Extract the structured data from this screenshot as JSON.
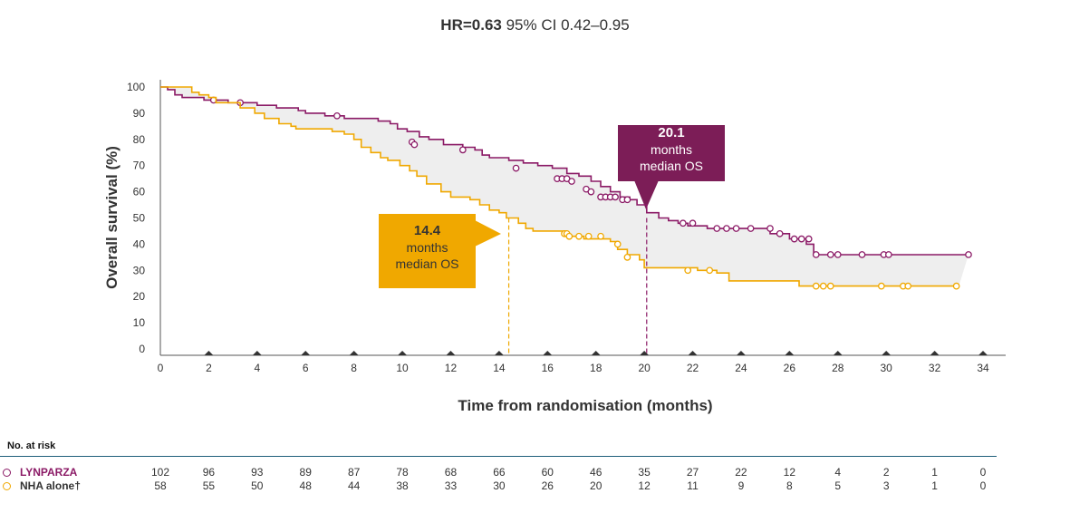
{
  "header": {
    "hr_bold": "HR=0.63",
    "hr_rest": " 95% CI 0.42–0.95"
  },
  "axes": {
    "ylabel": "Overall survival (%)",
    "xlabel": "Time from randomisation (months)"
  },
  "callouts": {
    "olaparib": {
      "value": "20.1",
      "line1": "months",
      "line2": "median OS"
    },
    "nha": {
      "value": "14.4",
      "line1": "months",
      "line2": "median OS"
    }
  },
  "risk_table": {
    "title": "No. at risk",
    "rows": [
      {
        "label": "LYNPARZA",
        "color": "#8b1a66",
        "values": [
          "102",
          "96",
          "93",
          "89",
          "87",
          "78",
          "68",
          "66",
          "60",
          "46",
          "35",
          "27",
          "22",
          "12",
          "4",
          "2",
          "1",
          "0"
        ]
      },
      {
        "label": "NHA alone†",
        "color": "#f0a800",
        "values": [
          "58",
          "55",
          "50",
          "48",
          "44",
          "38",
          "33",
          "30",
          "26",
          "20",
          "12",
          "11",
          "9",
          "8",
          "5",
          "3",
          "1",
          "0"
        ]
      }
    ]
  },
  "chart_data": {
    "type": "line",
    "subtype": "kaplan-meier step",
    "title": "HR=0.63 95% CI 0.42–0.95",
    "xlabel": "Time from randomisation (months)",
    "ylabel": "Overall survival (%)",
    "xlim": [
      0,
      34
    ],
    "ylim": [
      0,
      100
    ],
    "xticks": [
      0,
      2,
      4,
      6,
      8,
      10,
      12,
      14,
      16,
      18,
      20,
      22,
      24,
      26,
      28,
      30,
      32,
      34
    ],
    "yticks": [
      0,
      10,
      20,
      30,
      40,
      50,
      60,
      70,
      80,
      90,
      100
    ],
    "grid": false,
    "medians": [
      {
        "series": "LYNPARZA",
        "x": 20.1,
        "y": 50
      },
      {
        "series": "NHA alone†",
        "x": 14.4,
        "y": 50
      }
    ],
    "series": [
      {
        "name": "LYNPARZA",
        "color": "#8b1a66",
        "steps": [
          [
            0,
            100
          ],
          [
            0.3,
            99
          ],
          [
            0.6,
            97
          ],
          [
            0.9,
            96
          ],
          [
            1.8,
            95
          ],
          [
            2.8,
            94
          ],
          [
            4.0,
            93
          ],
          [
            4.8,
            92
          ],
          [
            5.7,
            91
          ],
          [
            6.0,
            90
          ],
          [
            6.8,
            89
          ],
          [
            7.6,
            88
          ],
          [
            8.4,
            88
          ],
          [
            9.0,
            87
          ],
          [
            9.5,
            86
          ],
          [
            9.8,
            84
          ],
          [
            10.2,
            83
          ],
          [
            10.7,
            81
          ],
          [
            11.1,
            80
          ],
          [
            11.7,
            78
          ],
          [
            12.5,
            77
          ],
          [
            13.0,
            76
          ],
          [
            13.3,
            74
          ],
          [
            13.6,
            73
          ],
          [
            14.4,
            72
          ],
          [
            15.0,
            71
          ],
          [
            15.6,
            70
          ],
          [
            16.2,
            69
          ],
          [
            16.8,
            67
          ],
          [
            17.3,
            66
          ],
          [
            17.8,
            64
          ],
          [
            18.2,
            62
          ],
          [
            18.6,
            60
          ],
          [
            19.0,
            58
          ],
          [
            19.4,
            57
          ],
          [
            19.7,
            55
          ],
          [
            20.1,
            52
          ],
          [
            20.6,
            50
          ],
          [
            21.0,
            49
          ],
          [
            21.4,
            48
          ],
          [
            21.8,
            47
          ],
          [
            22.6,
            46
          ],
          [
            25.2,
            44
          ],
          [
            26.0,
            42
          ],
          [
            26.7,
            40
          ],
          [
            27.0,
            36
          ],
          [
            33.4,
            36
          ]
        ],
        "censored": [
          [
            2.2,
            95
          ],
          [
            3.3,
            94
          ],
          [
            7.3,
            89
          ],
          [
            10.4,
            79
          ],
          [
            10.5,
            78
          ],
          [
            12.5,
            76
          ],
          [
            14.7,
            69
          ],
          [
            16.4,
            65
          ],
          [
            16.6,
            65
          ],
          [
            16.8,
            65
          ],
          [
            17.0,
            64
          ],
          [
            17.6,
            61
          ],
          [
            17.8,
            60
          ],
          [
            18.2,
            58
          ],
          [
            18.4,
            58
          ],
          [
            18.6,
            58
          ],
          [
            18.8,
            58
          ],
          [
            19.1,
            57
          ],
          [
            19.3,
            57
          ],
          [
            21.6,
            48
          ],
          [
            22.0,
            48
          ],
          [
            23.0,
            46
          ],
          [
            23.4,
            46
          ],
          [
            23.8,
            46
          ],
          [
            24.4,
            46
          ],
          [
            25.2,
            46
          ],
          [
            25.6,
            44
          ],
          [
            26.2,
            42
          ],
          [
            26.5,
            42
          ],
          [
            26.8,
            42
          ],
          [
            27.1,
            36
          ],
          [
            27.7,
            36
          ],
          [
            28.0,
            36
          ],
          [
            29.0,
            36
          ],
          [
            29.9,
            36
          ],
          [
            30.1,
            36
          ],
          [
            33.4,
            36
          ]
        ]
      },
      {
        "name": "NHA alone†",
        "color": "#f0a800",
        "steps": [
          [
            0,
            100
          ],
          [
            1.3,
            98
          ],
          [
            1.6,
            97
          ],
          [
            2.0,
            96
          ],
          [
            2.3,
            94
          ],
          [
            3.3,
            92
          ],
          [
            3.9,
            90
          ],
          [
            4.3,
            88
          ],
          [
            4.9,
            86
          ],
          [
            5.4,
            85
          ],
          [
            5.6,
            84
          ],
          [
            7.1,
            83
          ],
          [
            7.6,
            82
          ],
          [
            8.0,
            80
          ],
          [
            8.3,
            77
          ],
          [
            8.7,
            75
          ],
          [
            9.1,
            73
          ],
          [
            9.4,
            72
          ],
          [
            9.9,
            70
          ],
          [
            10.3,
            68
          ],
          [
            10.6,
            66
          ],
          [
            11.0,
            63
          ],
          [
            11.6,
            60
          ],
          [
            12.0,
            58
          ],
          [
            12.8,
            57
          ],
          [
            13.2,
            55
          ],
          [
            13.6,
            53
          ],
          [
            14.0,
            52
          ],
          [
            14.3,
            50
          ],
          [
            14.8,
            48
          ],
          [
            15.1,
            46
          ],
          [
            15.4,
            45
          ],
          [
            16.8,
            43
          ],
          [
            17.5,
            42
          ],
          [
            18.6,
            41
          ],
          [
            18.9,
            38
          ],
          [
            19.3,
            36
          ],
          [
            19.8,
            34
          ],
          [
            20.0,
            31
          ],
          [
            21.3,
            31
          ],
          [
            22.2,
            30
          ],
          [
            23.0,
            29
          ],
          [
            23.5,
            26
          ],
          [
            25.3,
            26
          ],
          [
            26.4,
            24
          ],
          [
            33.0,
            24
          ]
        ],
        "censored": [
          [
            16.7,
            44
          ],
          [
            16.8,
            44
          ],
          [
            16.9,
            43
          ],
          [
            17.3,
            43
          ],
          [
            17.7,
            43
          ],
          [
            18.2,
            43
          ],
          [
            18.9,
            40
          ],
          [
            19.3,
            35
          ],
          [
            21.8,
            30
          ],
          [
            22.7,
            30
          ],
          [
            27.1,
            24
          ],
          [
            27.4,
            24
          ],
          [
            27.7,
            24
          ],
          [
            29.8,
            24
          ],
          [
            30.7,
            24
          ],
          [
            30.9,
            24
          ],
          [
            32.9,
            24
          ]
        ]
      }
    ]
  }
}
